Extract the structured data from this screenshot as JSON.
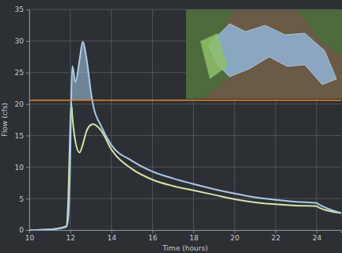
{
  "chart_data": {
    "type": "line",
    "x_label": "Time (hours)",
    "y_label": "Flow (cfs)",
    "x": [
      10,
      11,
      11.8,
      11.9,
      12,
      12.05,
      12.1,
      12.25,
      12.45,
      12.6,
      12.8,
      13,
      13.1,
      13.5,
      14,
      15,
      16,
      17,
      18,
      19,
      20,
      21,
      22,
      23,
      24,
      24.1,
      25.2
    ],
    "series": [
      {
        "color": "#a9cbe9",
        "values": [
          0,
          0.1,
          0.5,
          2,
          12,
          22,
          26,
          23.5,
          27,
          29.9,
          27,
          22,
          20,
          16.5,
          13.5,
          11,
          9.3,
          8.2,
          7.3,
          6.5,
          5.8,
          5.2,
          4.8,
          4.5,
          4.3,
          4.1,
          2.7
        ]
      },
      {
        "color": "#d3e5a2",
        "values": [
          0,
          0.1,
          0.6,
          5,
          17,
          20,
          18,
          14,
          12.3,
          13.5,
          15.8,
          16.7,
          16.8,
          15.8,
          12.8,
          9.7,
          8,
          7,
          6.3,
          5.6,
          4.9,
          4.4,
          4.1,
          3.9,
          3.8,
          3.6,
          2.7
        ]
      }
    ],
    "threshold": {
      "value": 20.6,
      "color": "#e08a22"
    },
    "xlim": [
      10,
      25.2
    ],
    "xticks": [
      10,
      12,
      14,
      16,
      18,
      20,
      22,
      24
    ],
    "ylim": [
      0,
      35
    ],
    "yticks": [
      0,
      5,
      10,
      15,
      20,
      25,
      30,
      35
    ],
    "grid": true
  }
}
